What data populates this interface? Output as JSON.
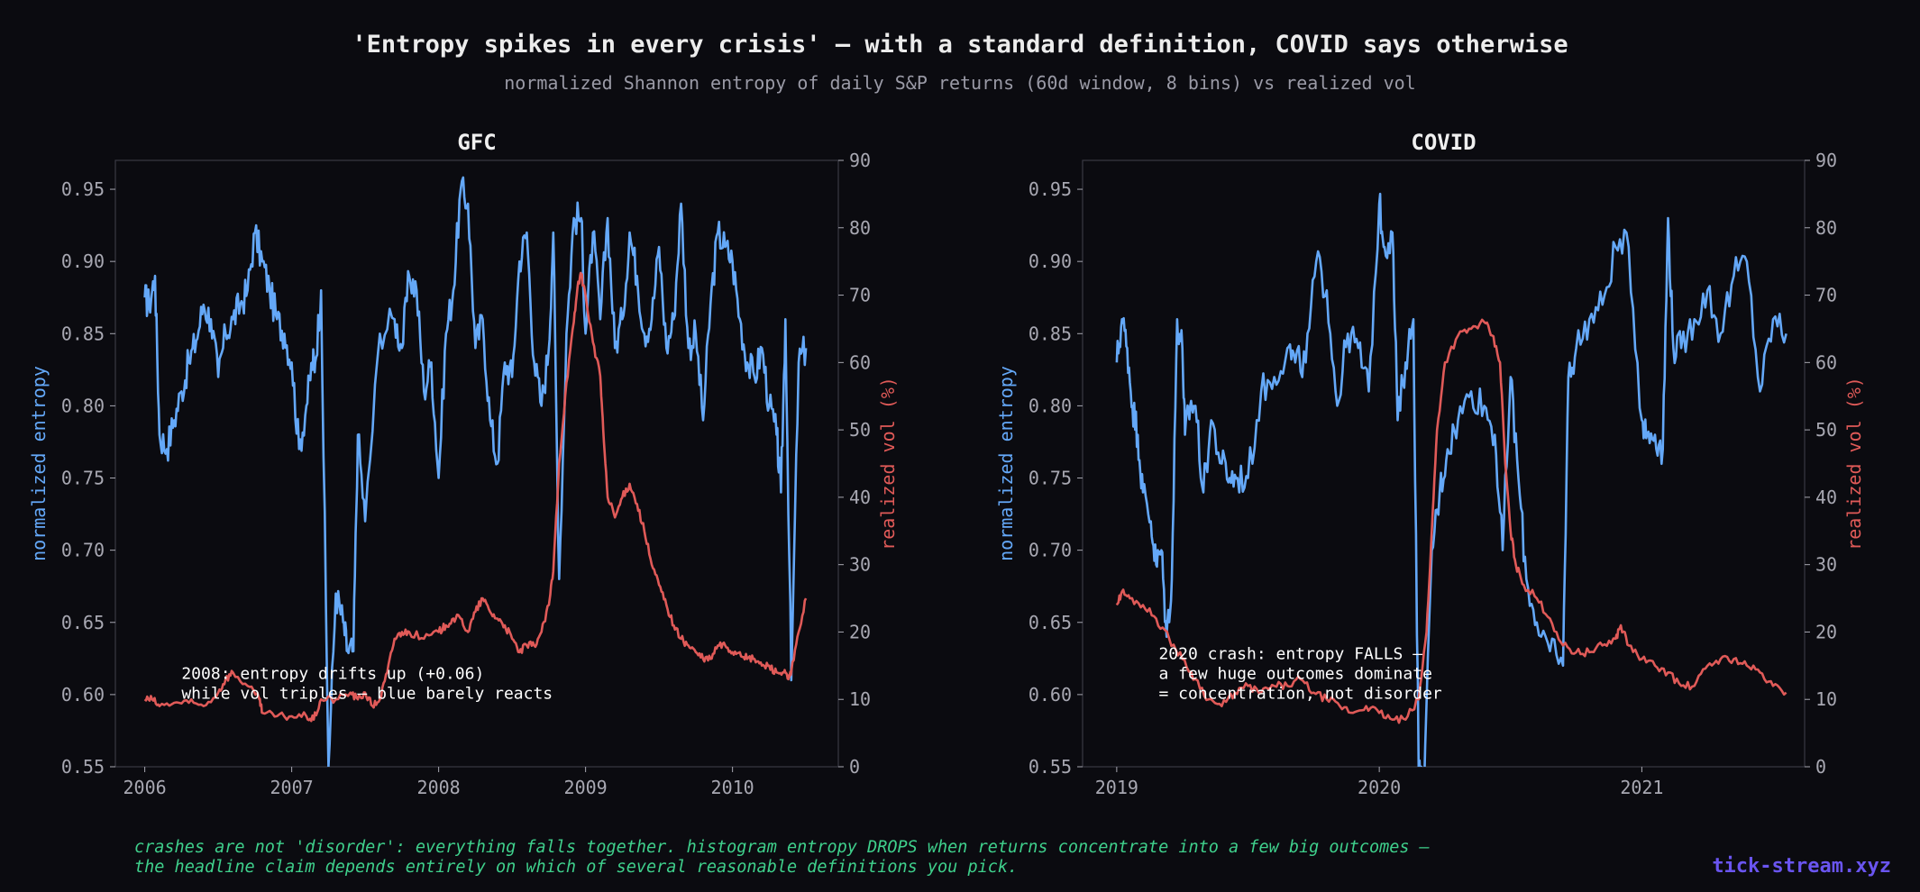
{
  "header": {
    "title": "'Entropy spikes in every crisis' — with a standard definition, COVID says otherwise",
    "subtitle": "normalized Shannon entropy of daily S&P returns (60d window, 8 bins) vs realized vol"
  },
  "footer": {
    "note_line1": "crashes are not 'disorder': everything falls together. histogram entropy DROPS when returns concentrate into a few big outcomes —",
    "note_line2": "the headline claim depends entirely on which of several reasonable definitions you pick.",
    "brand": "tick-stream.xyz"
  },
  "colors": {
    "background": "#0b0b10",
    "entropy": "#64a8f8",
    "vol": "#e05a58",
    "axis": "#3a3a44",
    "tick_text": "#a8a8b2",
    "panel_title": "#f0f0f0",
    "annotation": "#ffffff",
    "footnote": "#3fd08c",
    "brand": "#6a55f0"
  },
  "chart_data": [
    {
      "type": "line",
      "title": "GFC",
      "ylabel": "normalized entropy",
      "y2label": "realized vol (%)",
      "xlim": [
        2005.8,
        2010.72
      ],
      "ylim": [
        0.55,
        0.97
      ],
      "y2lim": [
        0,
        90
      ],
      "xticks": [
        2006,
        2007,
        2008,
        2009,
        2010
      ],
      "yticks": [
        0.55,
        0.6,
        0.65,
        0.7,
        0.75,
        0.8,
        0.85,
        0.9,
        0.95
      ],
      "y2ticks": [
        0,
        10,
        20,
        30,
        40,
        50,
        60,
        70,
        80,
        90
      ],
      "annotation": [
        "2008: entropy drifts up (+0.06)",
        "while vol triples — blue barely reacts"
      ],
      "annotation_anchor": [
        2006.25,
        0.611
      ],
      "series": [
        {
          "name": "normalized entropy",
          "axis": "left",
          "x": [
            2006.0,
            2006.03,
            2006.07,
            2006.1,
            2006.15,
            2006.2,
            2006.25,
            2006.3,
            2006.35,
            2006.4,
            2006.45,
            2006.5,
            2006.55,
            2006.6,
            2006.65,
            2006.7,
            2006.75,
            2006.8,
            2006.85,
            2006.9,
            2006.95,
            2007.0,
            2007.05,
            2007.1,
            2007.14,
            2007.16,
            2007.2,
            2007.25,
            2007.3,
            2007.35,
            2007.38,
            2007.42,
            2007.45,
            2007.5,
            2007.6,
            2007.7,
            2007.75,
            2007.8,
            2007.85,
            2007.9,
            2007.95,
            2008.0,
            2008.05,
            2008.1,
            2008.15,
            2008.2,
            2008.25,
            2008.3,
            2008.35,
            2008.4,
            2008.45,
            2008.5,
            2008.55,
            2008.6,
            2008.65,
            2008.7,
            2008.75,
            2008.78,
            2008.82,
            2008.87,
            2008.92,
            2008.97,
            2009.0,
            2009.05,
            2009.1,
            2009.15,
            2009.2,
            2009.25,
            2009.3,
            2009.35,
            2009.4,
            2009.45,
            2009.5,
            2009.55,
            2009.6,
            2009.65,
            2009.7,
            2009.75,
            2009.8,
            2009.85,
            2009.9,
            2009.95,
            2010.0,
            2010.05,
            2010.1,
            2010.15,
            2010.2,
            2010.25,
            2010.3,
            2010.33,
            2010.36,
            2010.4,
            2010.45,
            2010.5
          ],
          "y": [
            0.875,
            0.87,
            0.89,
            0.78,
            0.77,
            0.79,
            0.81,
            0.83,
            0.845,
            0.87,
            0.86,
            0.82,
            0.85,
            0.86,
            0.87,
            0.88,
            0.92,
            0.9,
            0.88,
            0.86,
            0.85,
            0.83,
            0.77,
            0.8,
            0.83,
            0.83,
            0.88,
            0.55,
            0.67,
            0.65,
            0.63,
            0.63,
            0.78,
            0.72,
            0.85,
            0.86,
            0.84,
            0.89,
            0.88,
            0.81,
            0.83,
            0.75,
            0.85,
            0.88,
            0.95,
            0.94,
            0.84,
            0.86,
            0.79,
            0.76,
            0.83,
            0.82,
            0.9,
            0.92,
            0.83,
            0.8,
            0.84,
            0.92,
            0.68,
            0.85,
            0.93,
            0.93,
            0.85,
            0.92,
            0.86,
            0.93,
            0.84,
            0.86,
            0.92,
            0.89,
            0.85,
            0.86,
            0.91,
            0.84,
            0.86,
            0.94,
            0.84,
            0.85,
            0.79,
            0.87,
            0.92,
            0.91,
            0.9,
            0.86,
            0.83,
            0.82,
            0.84,
            0.8,
            0.78,
            0.74,
            0.86,
            0.61,
            0.83,
            0.84
          ]
        },
        {
          "name": "realized vol (%)",
          "axis": "right",
          "x": [
            2006.0,
            2006.05,
            2006.1,
            2006.2,
            2006.3,
            2006.4,
            2006.5,
            2006.55,
            2006.6,
            2006.7,
            2006.78,
            2006.8,
            2006.9,
            2007.0,
            2007.1,
            2007.15,
            2007.2,
            2007.3,
            2007.4,
            2007.45,
            2007.5,
            2007.55,
            2007.6,
            2007.65,
            2007.7,
            2007.75,
            2007.8,
            2007.9,
            2008.0,
            2008.05,
            2008.1,
            2008.15,
            2008.2,
            2008.25,
            2008.3,
            2008.35,
            2008.4,
            2008.45,
            2008.5,
            2008.55,
            2008.6,
            2008.65,
            2008.7,
            2008.75,
            2008.78,
            2008.82,
            2008.87,
            2008.92,
            2008.95,
            2008.97,
            2009.0,
            2009.05,
            2009.1,
            2009.12,
            2009.15,
            2009.2,
            2009.25,
            2009.3,
            2009.35,
            2009.4,
            2009.45,
            2009.5,
            2009.55,
            2009.6,
            2009.65,
            2009.7,
            2009.75,
            2009.8,
            2009.85,
            2009.9,
            2009.95,
            2010.0,
            2010.05,
            2010.1,
            2010.15,
            2010.2,
            2010.25,
            2010.3,
            2010.35,
            2010.38,
            2010.4,
            2010.45,
            2010.5
          ],
          "y": [
            10,
            10,
            9,
            9.5,
            9.5,
            9,
            11,
            13,
            14,
            12,
            10,
            8,
            7.5,
            7.5,
            7.5,
            7,
            10,
            10,
            11,
            10,
            11,
            9,
            10,
            14,
            19,
            20,
            20,
            19,
            20,
            21,
            22,
            22,
            20,
            23,
            25,
            23,
            22,
            21,
            19,
            17,
            18,
            18,
            20,
            24,
            29,
            45,
            57,
            66,
            72,
            73,
            70,
            63,
            58,
            50,
            40,
            37,
            40,
            42,
            39,
            35,
            30,
            27,
            24,
            21,
            19,
            18,
            17,
            16,
            16,
            18,
            18,
            17,
            17,
            16,
            16,
            15,
            15,
            14,
            14,
            13,
            14,
            20,
            25
          ]
        }
      ]
    },
    {
      "type": "line",
      "title": "COVID",
      "ylabel": "normalized entropy",
      "y2label": "realized vol (%)",
      "xlim": [
        2018.87,
        2021.62
      ],
      "ylim": [
        0.55,
        0.97
      ],
      "y2lim": [
        0,
        90
      ],
      "xticks": [
        2019,
        2020,
        2021
      ],
      "yticks": [
        0.55,
        0.6,
        0.65,
        0.7,
        0.75,
        0.8,
        0.85,
        0.9,
        0.95
      ],
      "y2ticks": [
        0,
        10,
        20,
        30,
        40,
        50,
        60,
        70,
        80,
        90
      ],
      "annotation": [
        "2020 crash: entropy FALLS —",
        "a few huge outcomes dominate",
        "= concentration, not disorder"
      ],
      "annotation_anchor": [
        2019.16,
        0.611
      ],
      "series": [
        {
          "name": "normalized entropy",
          "axis": "left",
          "x": [
            2019.0,
            2019.02,
            2019.04,
            2019.06,
            2019.08,
            2019.1,
            2019.13,
            2019.15,
            2019.17,
            2019.19,
            2019.21,
            2019.23,
            2019.25,
            2019.26,
            2019.28,
            2019.3,
            2019.33,
            2019.36,
            2019.4,
            2019.43,
            2019.46,
            2019.5,
            2019.55,
            2019.6,
            2019.65,
            2019.68,
            2019.72,
            2019.76,
            2019.8,
            2019.84,
            2019.88,
            2019.92,
            2019.96,
            2020.0,
            2020.02,
            2020.05,
            2020.07,
            2020.1,
            2020.13,
            2020.15,
            2020.17,
            2020.2,
            2020.23,
            2020.26,
            2020.3,
            2020.35,
            2020.4,
            2020.44,
            2020.47,
            2020.5,
            2020.53,
            2020.56,
            2020.6,
            2020.65,
            2020.7,
            2020.72,
            2020.75,
            2020.8,
            2020.85,
            2020.9,
            2020.95,
            2021.0,
            2021.02,
            2021.05,
            2021.08,
            2021.1,
            2021.12,
            2021.15,
            2021.2,
            2021.25,
            2021.3,
            2021.35,
            2021.4,
            2021.45,
            2021.5,
            2021.55
          ],
          "y": [
            0.83,
            0.86,
            0.84,
            0.8,
            0.78,
            0.74,
            0.72,
            0.69,
            0.7,
            0.64,
            0.68,
            0.86,
            0.84,
            0.78,
            0.8,
            0.8,
            0.74,
            0.79,
            0.76,
            0.75,
            0.75,
            0.75,
            0.81,
            0.82,
            0.84,
            0.83,
            0.83,
            0.9,
            0.88,
            0.8,
            0.85,
            0.84,
            0.81,
            0.94,
            0.91,
            0.92,
            0.79,
            0.83,
            0.86,
            0.55,
            0.53,
            0.7,
            0.74,
            0.77,
            0.79,
            0.81,
            0.8,
            0.78,
            0.7,
            0.82,
            0.75,
            0.68,
            0.65,
            0.63,
            0.62,
            0.82,
            0.84,
            0.86,
            0.87,
            0.91,
            0.91,
            0.79,
            0.78,
            0.78,
            0.77,
            0.93,
            0.84,
            0.84,
            0.86,
            0.88,
            0.85,
            0.89,
            0.9,
            0.81,
            0.86,
            0.85
          ]
        },
        {
          "name": "realized vol (%)",
          "axis": "right",
          "x": [
            2019.0,
            2019.02,
            2019.05,
            2019.1,
            2019.15,
            2019.2,
            2019.25,
            2019.3,
            2019.35,
            2019.4,
            2019.45,
            2019.5,
            2019.55,
            2019.6,
            2019.65,
            2019.7,
            2019.75,
            2019.8,
            2019.85,
            2019.9,
            2019.95,
            2020.0,
            2020.05,
            2020.1,
            2020.15,
            2020.18,
            2020.2,
            2020.22,
            2020.25,
            2020.3,
            2020.35,
            2020.4,
            2020.43,
            2020.46,
            2020.48,
            2020.5,
            2020.52,
            2020.55,
            2020.6,
            2020.65,
            2020.7,
            2020.75,
            2020.8,
            2020.85,
            2020.9,
            2020.92,
            2020.95,
            2021.0,
            2021.05,
            2021.1,
            2021.15,
            2021.2,
            2021.25,
            2021.3,
            2021.35,
            2021.4,
            2021.45,
            2021.5,
            2021.55
          ],
          "y": [
            24,
            26,
            25,
            24,
            22,
            19,
            16,
            13,
            10,
            9,
            11,
            12,
            11,
            12,
            12,
            13,
            11,
            10,
            9,
            8,
            9,
            8,
            7,
            7,
            10,
            20,
            35,
            50,
            60,
            64,
            65,
            66,
            64,
            60,
            45,
            35,
            30,
            27,
            25,
            22,
            18,
            17,
            17,
            18,
            19,
            21,
            18,
            16,
            15,
            14,
            12,
            12,
            15,
            16,
            16,
            15,
            14,
            12,
            11
          ]
        }
      ]
    }
  ]
}
